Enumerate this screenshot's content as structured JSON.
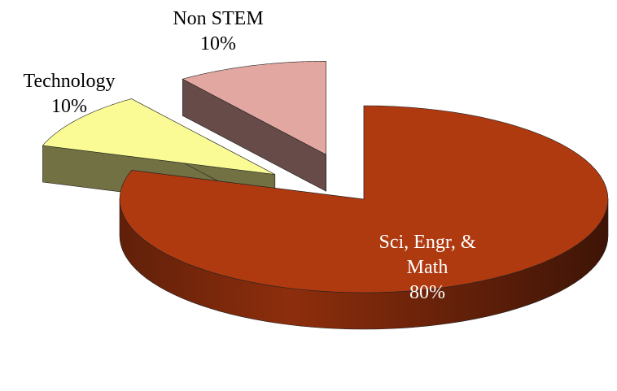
{
  "chart_data": {
    "type": "pie",
    "categories": [
      "Sci, Engr, & Math",
      "Technology",
      "Non STEM"
    ],
    "values": [
      80,
      10,
      10
    ],
    "value_labels": [
      "80%",
      "10%",
      "10%"
    ],
    "colors": [
      "#b03a10",
      "#fbfb95",
      "#e2a7a0"
    ]
  }
}
